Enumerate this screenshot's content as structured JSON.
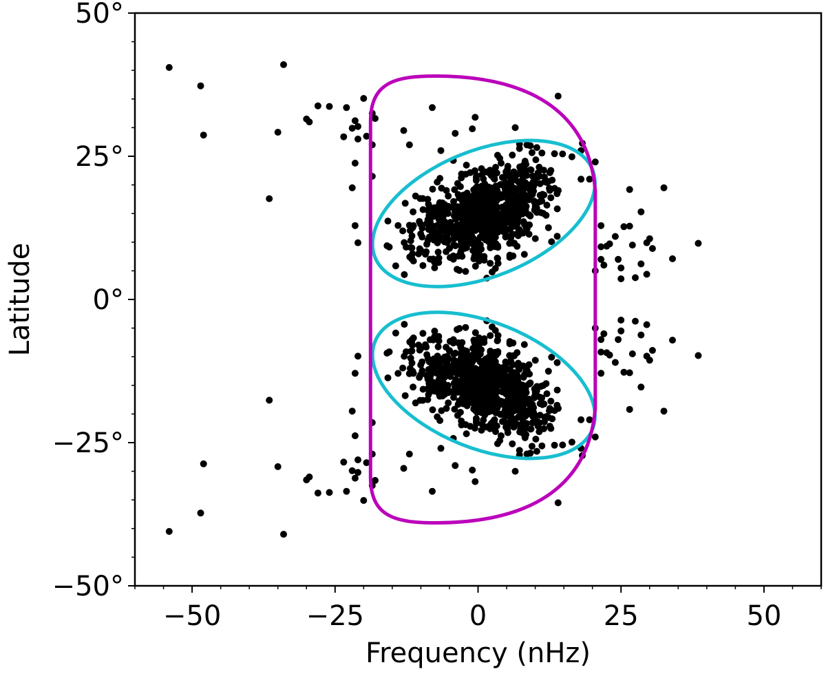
{
  "chart_data": {
    "type": "scatter",
    "title": "",
    "xlabel": "Frequency (nHz)",
    "ylabel": "Latitude",
    "xlim": [
      -60,
      60
    ],
    "ylim": [
      -50,
      50
    ],
    "x_ticks": [
      {
        "value": -50,
        "label": "−50"
      },
      {
        "value": -25,
        "label": "−25"
      },
      {
        "value": 0,
        "label": "0"
      },
      {
        "value": 25,
        "label": "25"
      },
      {
        "value": 50,
        "label": "50"
      }
    ],
    "y_ticks": [
      {
        "value": 50,
        "label": "50°"
      },
      {
        "value": 25,
        "label": "25°"
      },
      {
        "value": 0,
        "label": "0°"
      },
      {
        "value": -25,
        "label": "−25°"
      },
      {
        "value": -50,
        "label": "−50°"
      }
    ],
    "x_minor_step": 5,
    "y_minor_step": 5,
    "grid": false,
    "legend": "none",
    "point_color": "#000000",
    "magenta_color": "#bb00bb",
    "cyan_color": "#17becf",
    "outliers": [
      [
        -54.0,
        40.5
      ],
      [
        -48.5,
        37.3
      ],
      [
        -48.0,
        28.7
      ],
      [
        -35.0,
        29.2
      ],
      [
        -34.0,
        41.0
      ],
      [
        -36.5,
        17.6
      ],
      [
        -30.0,
        31.5
      ],
      [
        -29.5,
        31.0
      ],
      [
        -28.0,
        33.8
      ],
      [
        -26.0,
        33.7
      ],
      [
        -23.5,
        28.4
      ],
      [
        -23.0,
        33.5
      ],
      [
        -22.0,
        29.9
      ],
      [
        -21.5,
        31.2
      ],
      [
        -21.0,
        28.0
      ],
      [
        -21.0,
        30.2
      ],
      [
        -20.0,
        35.1
      ],
      [
        -19.5,
        28.5
      ],
      [
        -22.0,
        19.5
      ],
      [
        -21.5,
        23.8
      ],
      [
        -21.5,
        12.9
      ],
      [
        -21.0,
        9.9
      ],
      [
        -18.5,
        27.0
      ],
      [
        -18.0,
        31.6
      ],
      [
        -18.5,
        32.5
      ],
      [
        -18.5,
        21.5
      ],
      [
        -8.0,
        33.5
      ],
      [
        -1.0,
        29.8
      ],
      [
        -0.5,
        31.8
      ],
      [
        6.5,
        30.0
      ],
      [
        14.0,
        35.5
      ],
      [
        18.0,
        26.0
      ],
      [
        20.5,
        24.0
      ],
      [
        19.5,
        21.0
      ],
      [
        18.0,
        21.0
      ],
      [
        21.5,
        9.2
      ],
      [
        21.5,
        12.9
      ],
      [
        22.5,
        9.3
      ],
      [
        23.0,
        9.7
      ],
      [
        22.0,
        6.0
      ],
      [
        20.5,
        5.0
      ],
      [
        21.5,
        7.0
      ],
      [
        24.0,
        11.0
      ],
      [
        24.5,
        7.0
      ],
      [
        25.0,
        5.5
      ],
      [
        25.0,
        3.6
      ],
      [
        25.5,
        12.7
      ],
      [
        26.5,
        12.8
      ],
      [
        26.5,
        19.2
      ],
      [
        27.0,
        9.5
      ],
      [
        27.5,
        3.8
      ],
      [
        28.5,
        6.2
      ],
      [
        28.5,
        15.3
      ],
      [
        29.5,
        4.4
      ],
      [
        29.5,
        9.9
      ],
      [
        30.0,
        10.6
      ],
      [
        30.5,
        8.9
      ],
      [
        32.5,
        19.5
      ],
      [
        34.0,
        7.1
      ],
      [
        38.5,
        9.8
      ],
      [
        -13.0,
        29.5
      ],
      [
        -12.0,
        27.0
      ],
      [
        -6.5,
        26.0
      ],
      [
        -4.0,
        29.0
      ],
      [
        -54.0,
        -40.5
      ],
      [
        -48.5,
        -37.3
      ],
      [
        -48.0,
        -28.7
      ],
      [
        -35.0,
        -29.2
      ],
      [
        -34.0,
        -41.0
      ],
      [
        -36.5,
        -17.6
      ],
      [
        -30.0,
        -31.5
      ],
      [
        -29.5,
        -31.0
      ],
      [
        -28.0,
        -33.8
      ],
      [
        -26.0,
        -33.7
      ],
      [
        -23.5,
        -28.4
      ],
      [
        -23.0,
        -33.5
      ],
      [
        -22.0,
        -29.9
      ],
      [
        -21.5,
        -31.2
      ],
      [
        -21.0,
        -28.0
      ],
      [
        -21.0,
        -30.2
      ],
      [
        -20.0,
        -35.1
      ],
      [
        -19.5,
        -28.5
      ],
      [
        -22.0,
        -19.5
      ],
      [
        -21.5,
        -23.8
      ],
      [
        -21.5,
        -12.9
      ],
      [
        -21.0,
        -9.9
      ],
      [
        -18.5,
        -27.0
      ],
      [
        -18.0,
        -31.6
      ],
      [
        -18.5,
        -32.5
      ],
      [
        -18.5,
        -21.5
      ],
      [
        -8.0,
        -33.5
      ],
      [
        -1.0,
        -29.8
      ],
      [
        -0.5,
        -31.8
      ],
      [
        6.5,
        -30.0
      ],
      [
        14.0,
        -35.5
      ],
      [
        18.0,
        -26.0
      ],
      [
        20.5,
        -24.0
      ],
      [
        19.5,
        -21.0
      ],
      [
        18.0,
        -21.0
      ],
      [
        21.5,
        -9.2
      ],
      [
        21.5,
        -12.9
      ],
      [
        22.5,
        -9.3
      ],
      [
        23.0,
        -9.7
      ],
      [
        22.0,
        -6.0
      ],
      [
        20.5,
        -5.0
      ],
      [
        21.5,
        -7.0
      ],
      [
        24.0,
        -11.0
      ],
      [
        24.5,
        -7.0
      ],
      [
        25.0,
        -5.5
      ],
      [
        25.0,
        -3.6
      ],
      [
        25.5,
        -12.7
      ],
      [
        26.5,
        -12.8
      ],
      [
        26.5,
        -19.2
      ],
      [
        27.0,
        -9.5
      ],
      [
        27.5,
        -3.8
      ],
      [
        28.5,
        -6.2
      ],
      [
        28.5,
        -15.3
      ],
      [
        29.5,
        -4.4
      ],
      [
        29.5,
        -9.9
      ],
      [
        30.0,
        -10.6
      ],
      [
        30.5,
        -8.9
      ],
      [
        32.5,
        -19.5
      ],
      [
        34.0,
        -7.1
      ],
      [
        38.5,
        -9.8
      ],
      [
        -13.0,
        -29.5
      ],
      [
        -12.0,
        -27.0
      ],
      [
        -6.5,
        -26.0
      ],
      [
        -4.0,
        -29.0
      ]
    ],
    "cluster": {
      "count_per_hemisphere": 800,
      "center": [
        1.0,
        15.0
      ],
      "mirrored_about_equator": true,
      "lat_range": [
        2.0,
        28.5
      ],
      "freq_range": [
        -17.0,
        20.0
      ]
    },
    "overlays": [
      {
        "shape": "ellipse",
        "color": "cyan",
        "center": [
          1.0,
          15.0
        ],
        "semi_axes": [
          20.5,
          11.0
        ],
        "rotation_deg": -22
      },
      {
        "shape": "ellipse",
        "color": "cyan",
        "center": [
          1.0,
          -15.0
        ],
        "semi_axes": [
          20.5,
          11.0
        ],
        "rotation_deg": 22
      },
      {
        "shape": "stadium",
        "color": "magenta",
        "x_left": -18.8,
        "x_right": 20.5,
        "lat_top": 39.0,
        "lat_bottom": -39.0,
        "peak_x": -7.5,
        "side_straight_top": 19.0,
        "side_straight_bottom": -19.0
      }
    ]
  }
}
